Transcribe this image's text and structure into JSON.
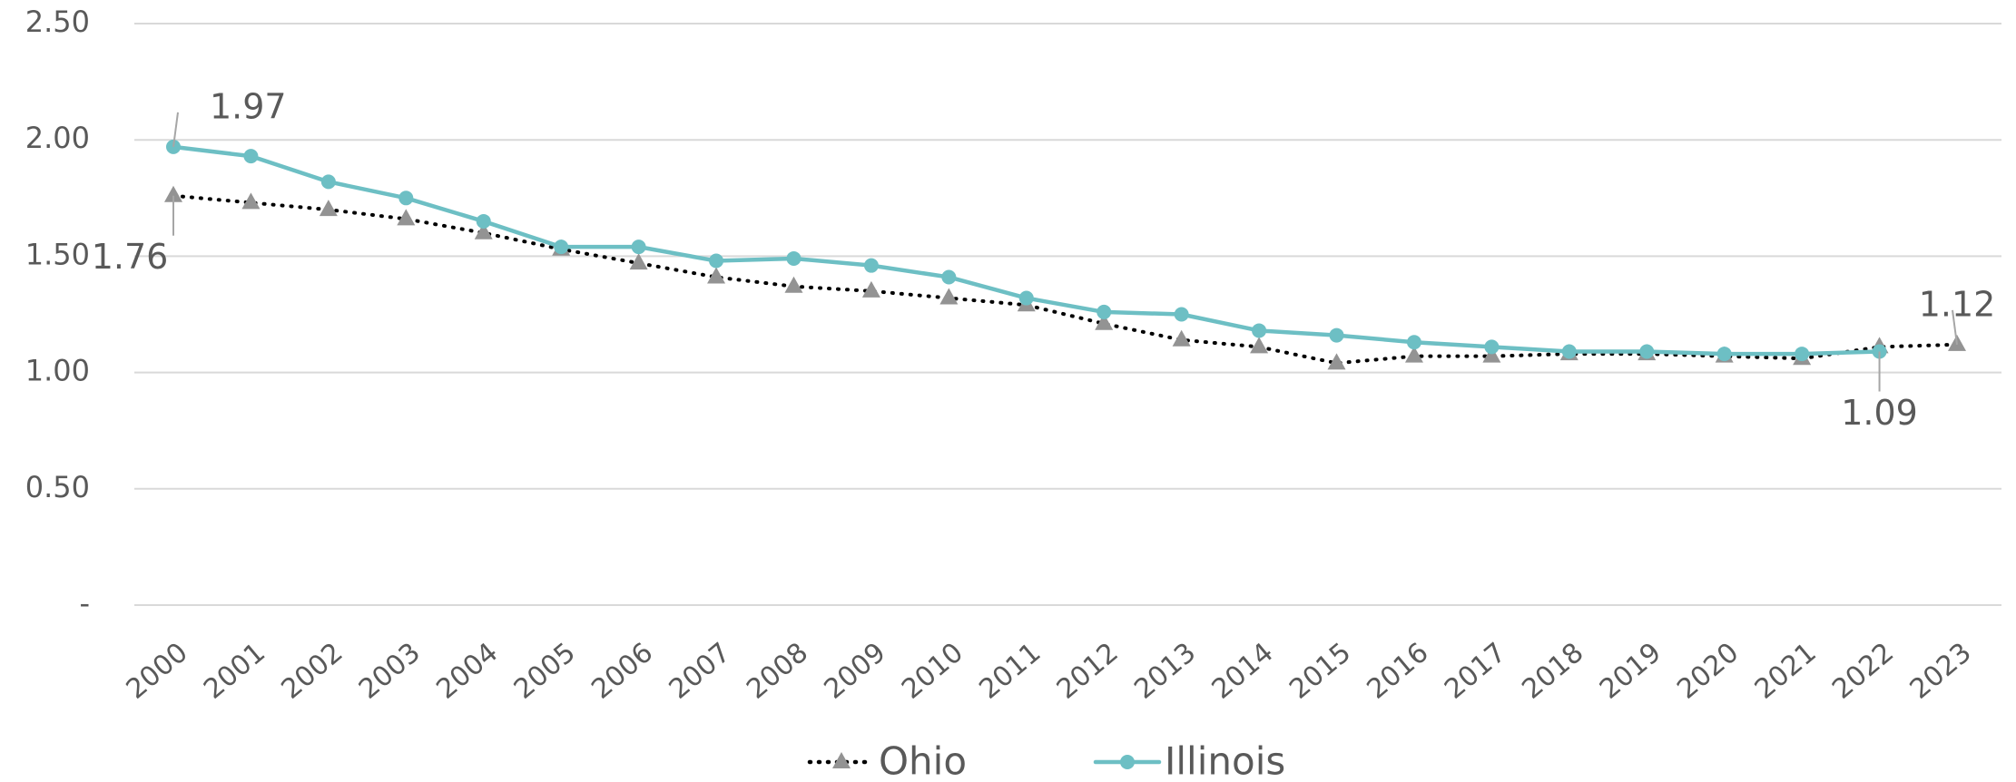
{
  "chart_data": {
    "type": "line",
    "x": [
      2000,
      2001,
      2002,
      2003,
      2004,
      2005,
      2006,
      2007,
      2008,
      2009,
      2010,
      2011,
      2012,
      2013,
      2014,
      2015,
      2016,
      2017,
      2018,
      2019,
      2020,
      2021,
      2022,
      2023
    ],
    "series": [
      {
        "name": "Ohio",
        "color": "#000000",
        "line_style": "dotted",
        "marker": "triangle",
        "marker_color": "#939393",
        "values": [
          1.76,
          1.73,
          1.7,
          1.66,
          1.6,
          1.53,
          1.47,
          1.41,
          1.37,
          1.35,
          1.32,
          1.29,
          1.21,
          1.14,
          1.11,
          1.04,
          1.07,
          1.07,
          1.08,
          1.08,
          1.07,
          1.06,
          1.11,
          1.12
        ],
        "value_labels": [
          "1.76",
          null,
          null,
          null,
          null,
          null,
          null,
          null,
          null,
          null,
          null,
          null,
          null,
          null,
          null,
          null,
          null,
          null,
          null,
          null,
          null,
          null,
          null,
          "1.12"
        ]
      },
      {
        "name": "Illinois",
        "color": "#6dbfc4",
        "line_style": "solid",
        "marker": "circle",
        "marker_color": "#6dbfc4",
        "values": [
          1.97,
          1.93,
          1.82,
          1.75,
          1.65,
          1.54,
          1.54,
          1.48,
          1.49,
          1.46,
          1.41,
          1.32,
          1.26,
          1.25,
          1.18,
          1.16,
          1.13,
          1.11,
          1.09,
          1.09,
          1.08,
          1.08,
          1.09,
          null
        ],
        "value_labels": [
          "1.97",
          null,
          null,
          null,
          null,
          null,
          null,
          null,
          null,
          null,
          null,
          null,
          null,
          null,
          null,
          null,
          null,
          null,
          null,
          null,
          null,
          null,
          "1.09",
          null
        ]
      }
    ],
    "ylim": [
      0,
      2.5
    ],
    "yticks": [
      {
        "value": 0,
        "label": "-"
      },
      {
        "value": 0.5,
        "label": "0.50"
      },
      {
        "value": 1,
        "label": "1.00"
      },
      {
        "value": 1.5,
        "label": "1.50"
      },
      {
        "value": 2,
        "label": "2.00"
      },
      {
        "value": 2.5,
        "label": "2.50"
      }
    ],
    "grid": true,
    "legend": "bottom"
  }
}
